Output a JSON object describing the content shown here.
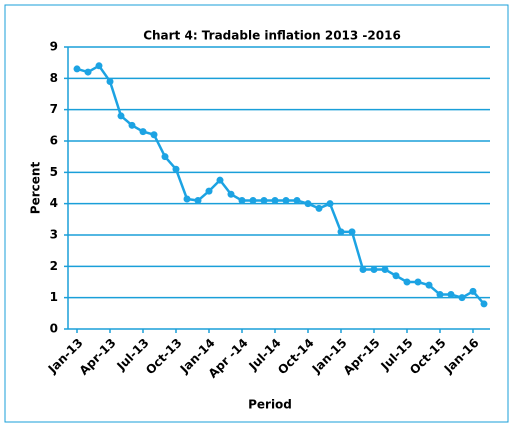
{
  "chart_data": {
    "type": "line",
    "title": "Chart 4: Tradable inflation 2013 -2016",
    "x_label": "Period",
    "y_label": "Percent",
    "categories": [
      "Jan-13",
      null,
      null,
      "Apr-13",
      null,
      null,
      "Jul-13",
      null,
      null,
      "Oct-13",
      null,
      null,
      "Jan-14",
      null,
      null,
      "Apr -14",
      null,
      null,
      "Jul-14",
      null,
      null,
      "Oct-14",
      null,
      null,
      "Jan-15",
      null,
      null,
      "Apr-15",
      null,
      null,
      "Jul-15",
      null,
      null,
      "Oct-15",
      null,
      null,
      "Jan-16",
      null
    ],
    "series": [
      {
        "name": "Tradable inflation",
        "color": "#1ca3e3",
        "values": [
          8.3,
          8.2,
          8.4,
          7.9,
          6.8,
          6.5,
          6.3,
          6.2,
          5.5,
          5.1,
          4.15,
          4.1,
          4.4,
          4.75,
          4.3,
          4.1,
          4.1,
          4.1,
          4.1,
          4.1,
          4.1,
          4.0,
          3.85,
          4.0,
          3.1,
          3.1,
          1.9,
          1.9,
          1.9,
          1.7,
          1.5,
          1.5,
          1.4,
          1.1,
          1.1,
          1.0,
          1.2,
          0.8
        ]
      }
    ],
    "ylim": [
      0,
      9
    ],
    "yticks": [
      0,
      1,
      2,
      3,
      4,
      5,
      6,
      7,
      8,
      9
    ],
    "grid": true
  }
}
